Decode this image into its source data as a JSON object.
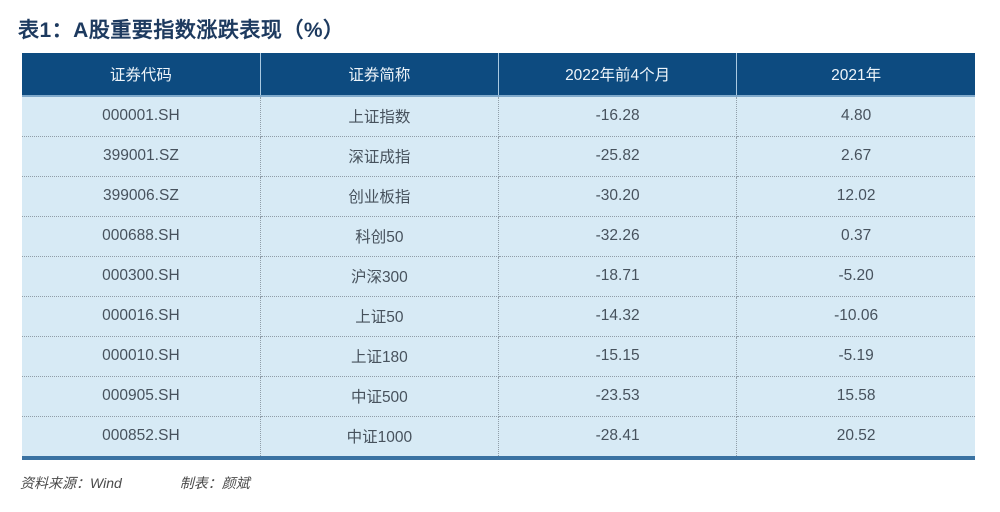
{
  "page": {
    "title": "表1：A股重要指数涨跌表现（%）",
    "source_label": "资料来源：Wind",
    "maker_label": "制表：颜斌"
  },
  "colors": {
    "title_text": "#1d3a5f",
    "header_bg": "#0d4b80",
    "header_text": "#eef5fa",
    "row_bg": "#d7eaf5",
    "cell_text": "#47525d",
    "dotted_divider": "#909ea9",
    "bottom_border": "#3a72a2"
  },
  "table": {
    "headers": [
      "证券代码",
      "证券简称",
      "2022年前4个月",
      "2021年"
    ],
    "rows": [
      {
        "code": "000001.SH",
        "name": "上证指数",
        "change_2022_4m": "-16.28",
        "change_2021": "4.80"
      },
      {
        "code": "399001.SZ",
        "name": "深证成指",
        "change_2022_4m": "-25.82",
        "change_2021": "2.67"
      },
      {
        "code": "399006.SZ",
        "name": "创业板指",
        "change_2022_4m": "-30.20",
        "change_2021": "12.02"
      },
      {
        "code": "000688.SH",
        "name": "科创50",
        "change_2022_4m": "-32.26",
        "change_2021": "0.37"
      },
      {
        "code": "000300.SH",
        "name": "沪深300",
        "change_2022_4m": "-18.71",
        "change_2021": "-5.20"
      },
      {
        "code": "000016.SH",
        "name": "上证50",
        "change_2022_4m": "-14.32",
        "change_2021": "-10.06"
      },
      {
        "code": "000010.SH",
        "name": "上证180",
        "change_2022_4m": "-15.15",
        "change_2021": "-5.19"
      },
      {
        "code": "000905.SH",
        "name": "中证500",
        "change_2022_4m": "-23.53",
        "change_2021": "15.58"
      },
      {
        "code": "000852.SH",
        "name": "中证1000",
        "change_2022_4m": "-28.41",
        "change_2021": "20.52"
      }
    ]
  },
  "chart_data": {
    "type": "table",
    "title": "表1：A股重要指数涨跌表现（%）",
    "columns": [
      "证券代码",
      "证券简称",
      "2022年前4个月",
      "2021年"
    ],
    "rows": [
      [
        "000001.SH",
        "上证指数",
        -16.28,
        4.8
      ],
      [
        "399001.SZ",
        "深证成指",
        -25.82,
        2.67
      ],
      [
        "399006.SZ",
        "创业板指",
        -30.2,
        12.02
      ],
      [
        "000688.SH",
        "科创50",
        -32.26,
        0.37
      ],
      [
        "000300.SH",
        "沪深300",
        -18.71,
        -5.2
      ],
      [
        "000016.SH",
        "上证50",
        -14.32,
        -10.06
      ],
      [
        "000010.SH",
        "上证180",
        -15.15,
        -5.19
      ],
      [
        "000905.SH",
        "中证500",
        -23.53,
        15.58
      ],
      [
        "000852.SH",
        "中证1000",
        -28.41,
        20.52
      ]
    ],
    "source": "Wind",
    "table_maker": "颜斌"
  }
}
